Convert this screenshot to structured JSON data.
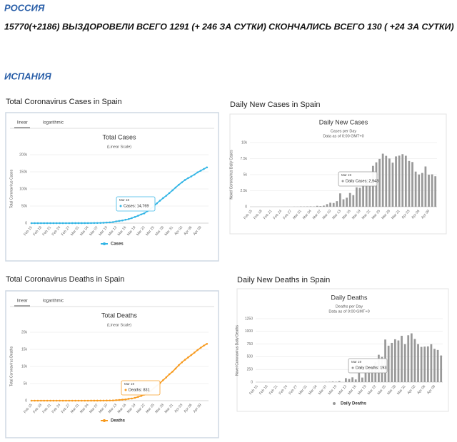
{
  "header": {
    "country_1": "РОССИЯ",
    "russia_stats": "15770(+2186) ВЫЗДОРОВЕЛИ ВСЕГО 1291 (+ 246 ЗА СУТКИ) СКОНЧАЛИСЬ ВСЕГО 130 ( +24 ЗА СУТКИ)",
    "country_2": "ИСПАНИЯ"
  },
  "chart_data": [
    {
      "type": "line",
      "heading": "Total Coronavirus Cases in Spain",
      "tabs": [
        "linear",
        "logarithmic"
      ],
      "title": "Total Cases",
      "subtitle": "(Linear Scale)",
      "y_label": "Total Coronavirus Cases",
      "categories": [
        "Feb 15",
        null,
        null,
        "Feb 18",
        null,
        null,
        "Feb 21",
        null,
        null,
        "Feb 24",
        null,
        null,
        "Feb 27",
        null,
        null,
        "Mar 01",
        null,
        null,
        "Mar 04",
        null,
        null,
        "Mar 07",
        null,
        null,
        "Mar 10",
        null,
        null,
        "Mar 13",
        null,
        null,
        "Mar 16",
        null,
        null,
        "Mar 19",
        null,
        null,
        "Mar 22",
        null,
        null,
        "Mar 25",
        null,
        null,
        "Mar 28",
        null,
        null,
        "Mar 31",
        null,
        null,
        "Apr 03",
        null,
        null,
        "Apr 06",
        null,
        null,
        "Apr 09",
        null,
        null
      ],
      "series": [
        {
          "name": "Cases",
          "color": "#33b5e5",
          "values": [
            2,
            2,
            2,
            2,
            2,
            2,
            2,
            2,
            2,
            2,
            6,
            13,
            15,
            32,
            45,
            84,
            120,
            165,
            222,
            259,
            400,
            500,
            673,
            1073,
            1695,
            2277,
            3146,
            5232,
            6391,
            7798,
            9942,
            11748,
            14769,
            18077,
            21571,
            25496,
            28768,
            35136,
            42058,
            49515,
            57786,
            65719,
            73235,
            80110,
            87956,
            95923,
            104118,
            112065,
            119199,
            126168,
            131646,
            136675,
            141942,
            148220,
            153222,
            158273,
            163027
          ]
        }
      ],
      "ylim": [
        0,
        200000
      ],
      "yticks": [
        0,
        {
          "value": 50000,
          "label": "50k"
        },
        {
          "value": 100000,
          "label": "100k"
        },
        {
          "value": 150000,
          "label": "150k"
        },
        {
          "value": 200000,
          "label": "200k"
        }
      ],
      "grid": true,
      "tooltip": {
        "date": "Mar 18",
        "text": "Cases: 14,769"
      }
    },
    {
      "type": "bar",
      "heading": "Daily New Cases in Spain",
      "title": "Daily New Cases",
      "subtitle": "Cases per Day",
      "note": "Data as of 0:00 GMT+0",
      "y_label": "Novel Coronavirus Daily Cases",
      "categories": [
        "Feb 15",
        null,
        null,
        "Feb 18",
        null,
        null,
        "Feb 21",
        null,
        null,
        "Feb 24",
        null,
        null,
        "Feb 27",
        null,
        null,
        "Mar 01",
        null,
        null,
        "Mar 04",
        null,
        null,
        "Mar 07",
        null,
        null,
        "Mar 10",
        null,
        null,
        "Mar 13",
        null,
        null,
        "Mar 16",
        null,
        null,
        "Mar 19",
        null,
        null,
        "Mar 22",
        null,
        null,
        "Mar 25",
        null,
        null,
        "Mar 28",
        null,
        null,
        "Mar 31",
        null,
        null,
        "Apr 03",
        null,
        null,
        "Apr 06",
        null,
        null,
        "Apr 09",
        null,
        null
      ],
      "values": [
        0,
        0,
        0,
        0,
        0,
        0,
        0,
        0,
        0,
        0,
        4,
        7,
        2,
        17,
        13,
        39,
        36,
        45,
        57,
        37,
        141,
        100,
        173,
        400,
        622,
        582,
        869,
        2086,
        1159,
        1407,
        2144,
        1806,
        3021,
        2943,
        3494,
        3925,
        3272,
        6368,
        6922,
        7457,
        8271,
        7933,
        7516,
        6875,
        7846,
        7967,
        8195,
        7947,
        7134,
        6969,
        5478,
        5029,
        5267,
        6278,
        5002,
        5051,
        4754
      ],
      "color": "#999999",
      "ylim": [
        0,
        10000
      ],
      "yticks": [
        0,
        {
          "value": 2500,
          "label": "2.5k"
        },
        {
          "value": 5000,
          "label": "5k"
        },
        {
          "value": 7500,
          "label": "7.5k"
        },
        {
          "value": 10000,
          "label": "10k"
        }
      ],
      "grid": true,
      "tooltip": {
        "date": "Mar 19",
        "text": "Daily Cases: 2,943"
      }
    },
    {
      "type": "line",
      "heading": "Total Coronavirus Deaths in Spain",
      "tabs": [
        "linear",
        "logarithmic"
      ],
      "title": "Total Deaths",
      "subtitle": "(Linear Scale)",
      "y_label": "Total Coronavirus Deaths",
      "categories": [
        "Feb 15",
        null,
        null,
        "Feb 18",
        null,
        null,
        "Feb 21",
        null,
        null,
        "Feb 24",
        null,
        null,
        "Feb 27",
        null,
        null,
        "Mar 01",
        null,
        null,
        "Mar 04",
        null,
        null,
        "Mar 07",
        null,
        null,
        "Mar 10",
        null,
        null,
        "Mar 13",
        null,
        null,
        "Mar 16",
        null,
        null,
        "Mar 19",
        null,
        null,
        "Mar 22",
        null,
        null,
        "Mar 25",
        null,
        null,
        "Mar 28",
        null,
        null,
        "Mar 31",
        null,
        null,
        "Apr 03",
        null,
        null,
        "Apr 06",
        null,
        null,
        "Apr 09",
        null,
        null
      ],
      "series": [
        {
          "name": "Deaths",
          "color": "#f79a1e",
          "values": [
            0,
            0,
            0,
            0,
            0,
            0,
            0,
            0,
            0,
            0,
            0,
            0,
            0,
            0,
            0,
            0,
            0,
            1,
            2,
            3,
            5,
            10,
            17,
            28,
            35,
            54,
            55,
            133,
            195,
            289,
            342,
            533,
            623,
            831,
            1093,
            1381,
            1772,
            2311,
            2808,
            3647,
            4365,
            5138,
            5982,
            6803,
            7716,
            8464,
            9387,
            10348,
            11198,
            11947,
            12641,
            13341,
            14045,
            14792,
            15447,
            16081,
            16606
          ]
        }
      ],
      "ylim": [
        0,
        20000
      ],
      "yticks": [
        0,
        {
          "value": 5000,
          "label": "5k"
        },
        {
          "value": 10000,
          "label": "10k"
        },
        {
          "value": 15000,
          "label": "15k"
        },
        {
          "value": 20000,
          "label": "20k"
        }
      ],
      "grid": true,
      "tooltip": {
        "date": "Mar 19",
        "text": "Deaths: 831"
      }
    },
    {
      "type": "bar",
      "heading": "Daily New Deaths in Spain",
      "title": "Daily Deaths",
      "subtitle": "Deaths per Day",
      "note": "Data as of 0:00 GMT+0",
      "y_label": "Novel Coronavirus Daily Deaths",
      "categories": [
        "Feb 15",
        null,
        null,
        "Feb 18",
        null,
        null,
        "Feb 21",
        null,
        null,
        "Feb 24",
        null,
        null,
        "Feb 27",
        null,
        null,
        "Mar 01",
        null,
        null,
        "Mar 04",
        null,
        null,
        "Mar 07",
        null,
        null,
        "Mar 10",
        null,
        null,
        "Mar 13",
        null,
        null,
        "Mar 16",
        null,
        null,
        "Mar 19",
        null,
        null,
        "Mar 22",
        null,
        null,
        "Mar 25",
        null,
        null,
        "Mar 28",
        null,
        null,
        "Mar 31",
        null,
        null,
        "Apr 03",
        null,
        null,
        "Apr 06",
        null,
        null,
        "Apr 09",
        null,
        null
      ],
      "series": [
        {
          "name": "Daily Deaths",
          "color": "#999999",
          "values": [
            0,
            0,
            0,
            0,
            0,
            0,
            0,
            0,
            0,
            0,
            0,
            0,
            0,
            0,
            0,
            0,
            0,
            1,
            1,
            1,
            2,
            5,
            7,
            11,
            7,
            19,
            1,
            78,
            62,
            94,
            53,
            191,
            90,
            193,
            262,
            288,
            391,
            539,
            497,
            839,
            718,
            773,
            844,
            821,
            913,
            748,
            923,
            961,
            850,
            749,
            694,
            700,
            704,
            747,
            655,
            634,
            525
          ]
        }
      ],
      "ylim": [
        0,
        1250
      ],
      "yticks": [
        0,
        250,
        500,
        750,
        1000,
        1250
      ],
      "grid": true,
      "tooltip": {
        "date": "Mar 19",
        "text": "Daily Deaths: 193"
      }
    }
  ]
}
